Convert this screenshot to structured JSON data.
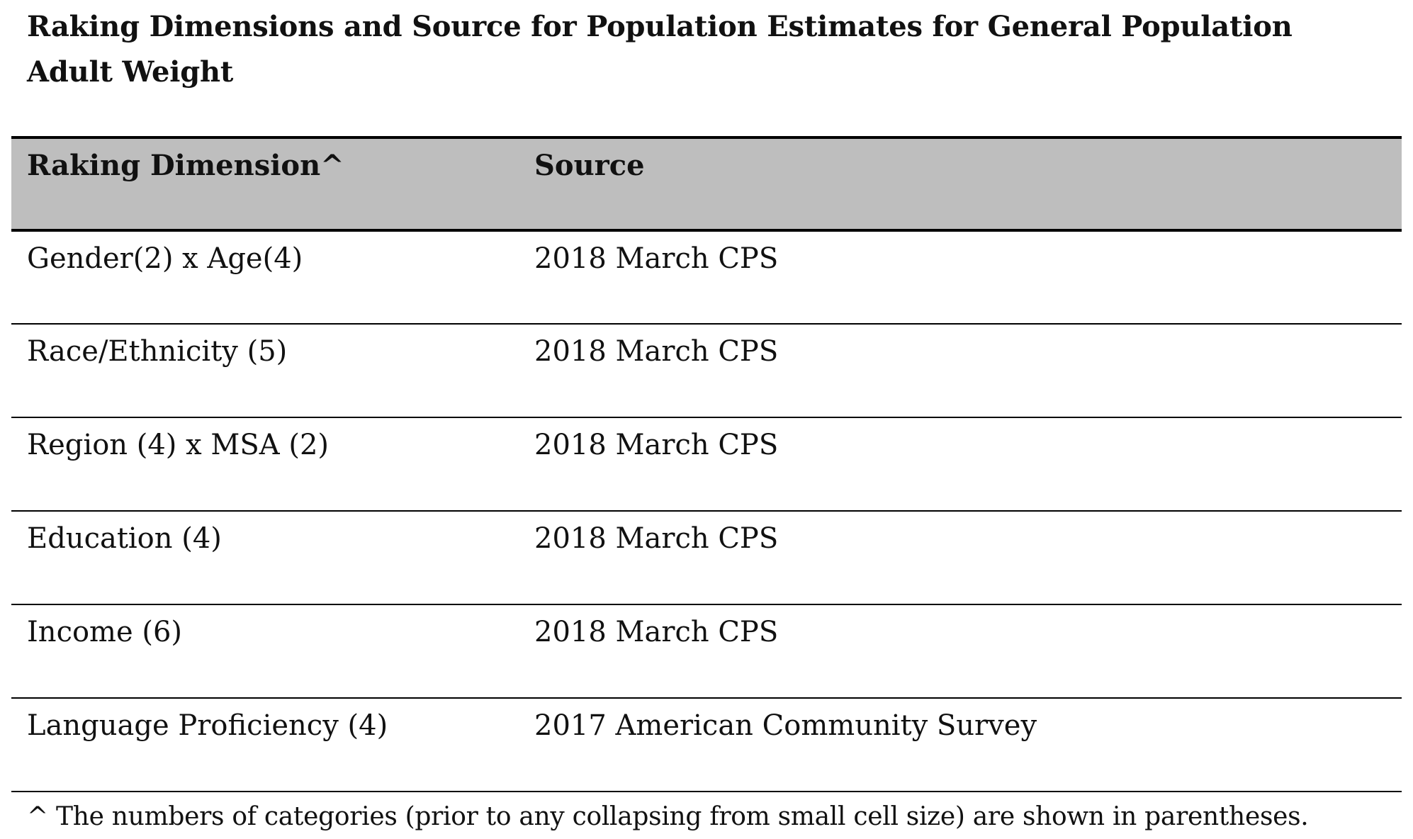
{
  "document": {
    "title": "Raking Dimensions and Source for Population Estimates for General Population Adult Weight",
    "table": {
      "headers": [
        "Raking Dimension^",
        "Source"
      ],
      "rows": [
        {
          "dimension": "Gender(2) x Age(4)",
          "source": "2018 March CPS"
        },
        {
          "dimension": "Race/Ethnicity (5)",
          "source": "2018 March CPS"
        },
        {
          "dimension": "Region (4) x MSA (2)",
          "source": "2018 March CPS"
        },
        {
          "dimension": "Education (4)",
          "source": "2018 March CPS"
        },
        {
          "dimension": "Income (6)",
          "source": "2018 March CPS"
        },
        {
          "dimension": "Language Proficiency (4)",
          "source": "2017 American Community Survey"
        }
      ]
    },
    "footnote": "^ The numbers of categories (prior to any collapsing from small cell size) are shown in parentheses."
  },
  "colors": {
    "header_background": "#bebebe",
    "rule": "#000000",
    "text": "#111111"
  }
}
